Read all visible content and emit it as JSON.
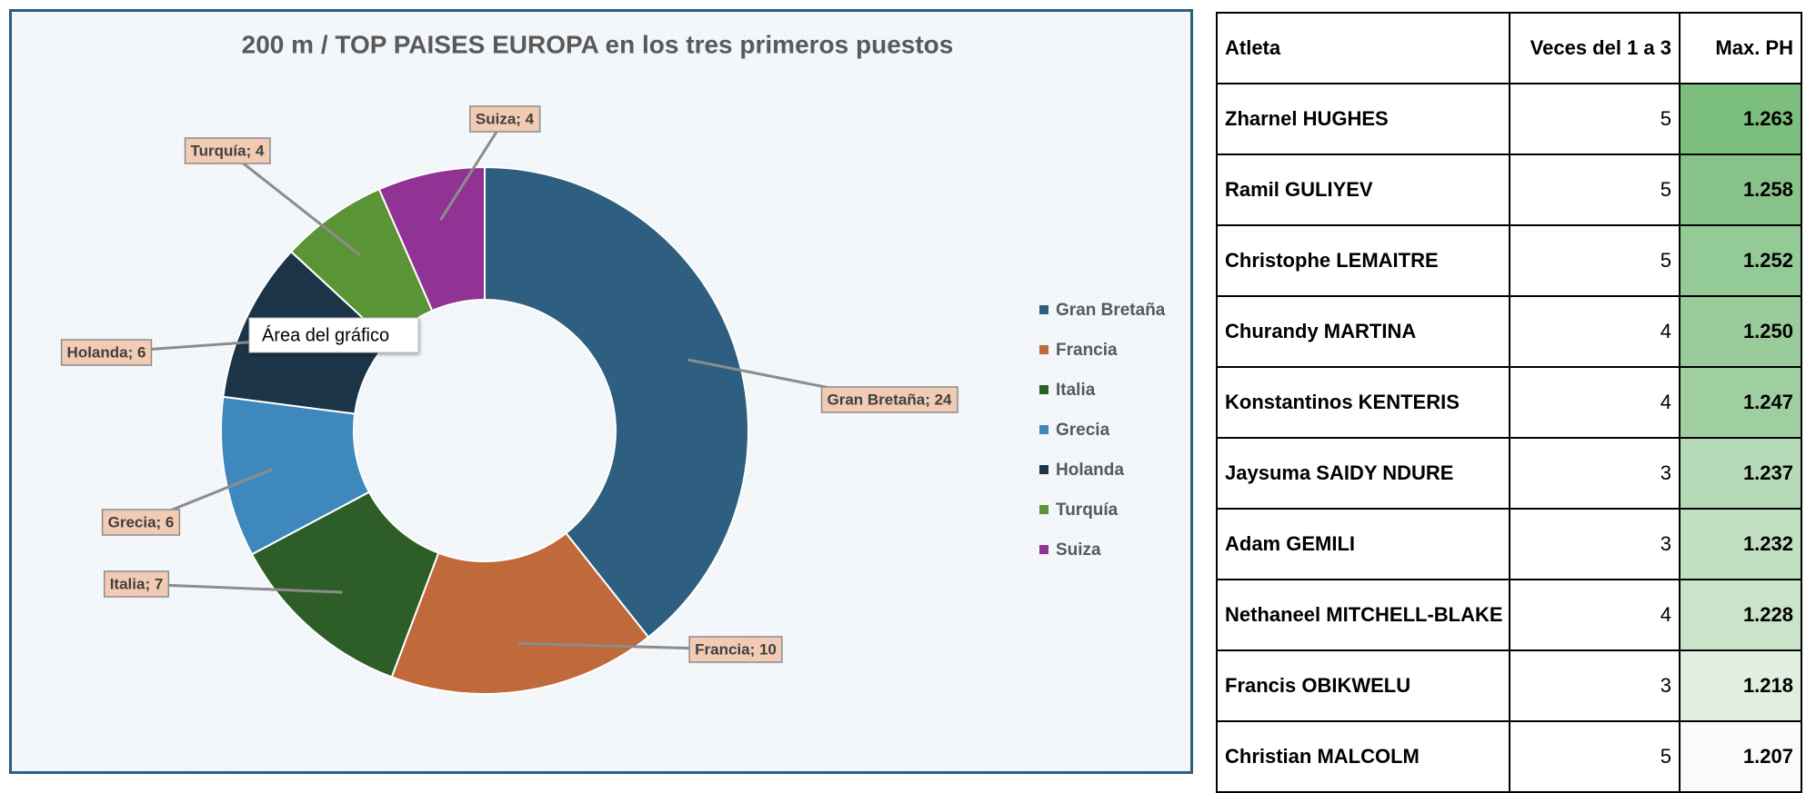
{
  "chart_data": {
    "type": "donut",
    "title": "200 m / TOP  PAISES EUROPA en los tres primeros puestos",
    "categories": [
      "Gran Bretaña",
      "Francia",
      "Italia",
      "Grecia",
      "Holanda",
      "Turquía",
      "Suiza"
    ],
    "values": [
      24,
      10,
      7,
      6,
      6,
      4,
      4
    ],
    "value_labels": [
      "Gran Bretaña; 24",
      "Francia; 10",
      "Italia; 7",
      "Grecia; 6",
      "Holanda; 6",
      "Turquía; 4",
      "Suiza; 4"
    ],
    "colors": [
      "#2e5f80",
      "#c0693a",
      "#2d5e27",
      "#3f88bd",
      "#1b3448",
      "#5a9437",
      "#913394"
    ],
    "legend": "right",
    "tooltip": "Área del gráfico"
  },
  "table": {
    "header": [
      "Atleta",
      "Veces del 1 a 3",
      "Max. PH"
    ],
    "rows": [
      [
        "Zharnel HUGHES",
        5,
        "1.263"
      ],
      [
        "Ramil GULIYEV",
        5,
        "1.258"
      ],
      [
        "Christophe LEMAITRE",
        5,
        "1.252"
      ],
      [
        "Churandy MARTINA",
        4,
        "1.250"
      ],
      [
        "Konstantinos KENTERIS",
        4,
        "1.247"
      ],
      [
        "Jaysuma SAIDY NDURE",
        3,
        "1.237"
      ],
      [
        "Adam GEMILI",
        3,
        "1.232"
      ],
      [
        "Nethaneel MITCHELL-BLAKE",
        4,
        "1.228"
      ],
      [
        "Francis OBIKWELU",
        3,
        "1.218"
      ],
      [
        "Christian MALCOLM",
        5,
        "1.207"
      ]
    ]
  }
}
